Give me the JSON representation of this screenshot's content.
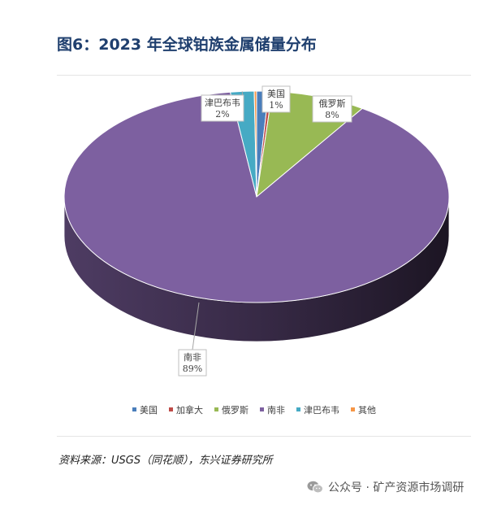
{
  "page_title": "图6：2023 年全球铂族金属储量分布",
  "source_note": "资料来源：USGS（同花顺），东兴证券研究所",
  "watermark": {
    "icon": "wechat-icon",
    "text": "公众号 · 矿产资源市场调研"
  },
  "chart_data": {
    "type": "pie",
    "style": "3d",
    "title": "",
    "legend_position": "bottom",
    "slices": [
      {
        "name": "美国",
        "value": 1,
        "label": "1%",
        "color": "#4a7ebb"
      },
      {
        "name": "加拿大",
        "value": 0.3,
        "label": "",
        "color": "#be4b48"
      },
      {
        "name": "俄罗斯",
        "value": 8,
        "label": "8%",
        "color": "#98b954"
      },
      {
        "name": "南非",
        "value": 89,
        "label": "89%",
        "color": "#7d60a0"
      },
      {
        "name": "津巴布韦",
        "value": 2,
        "label": "2%",
        "color": "#46aac4"
      },
      {
        "name": "其他",
        "value": 0.2,
        "label": "",
        "color": "#f69646"
      }
    ]
  }
}
